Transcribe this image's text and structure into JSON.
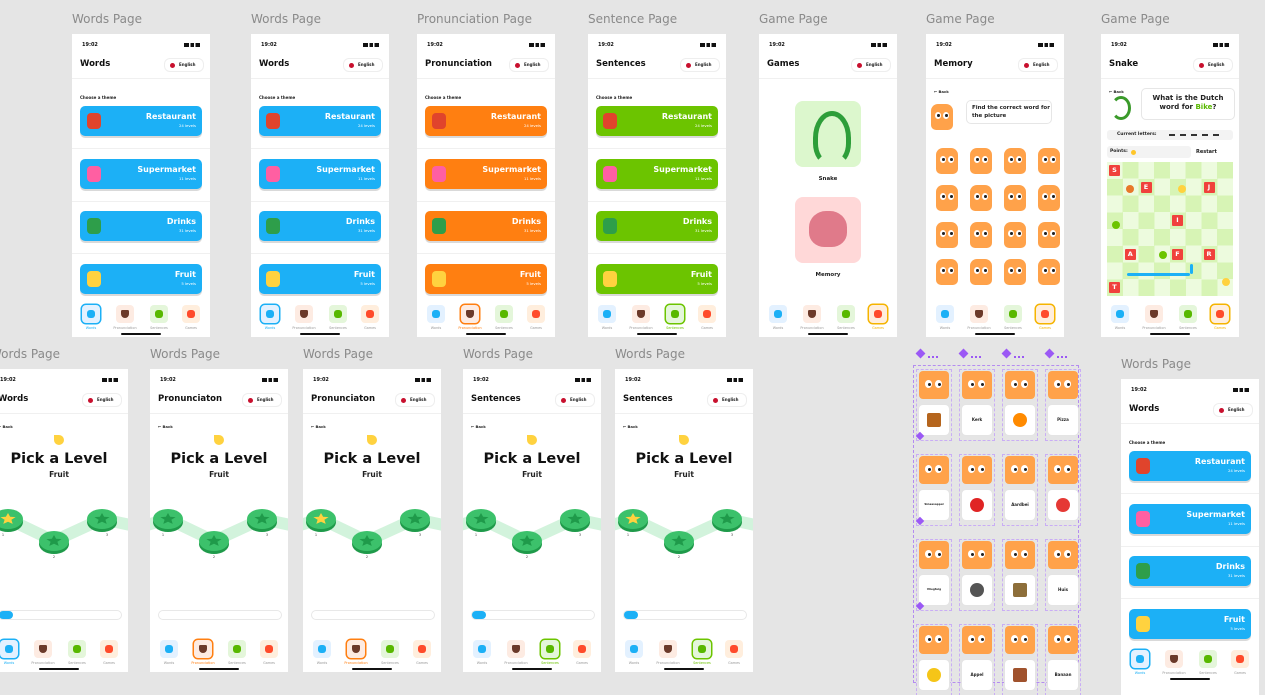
{
  "status_time": "19:02",
  "language": "English",
  "theme_prompt": "Choose a theme",
  "themes": [
    {
      "name": "Restaurant",
      "levels": "24 levels"
    },
    {
      "name": "Supermarket",
      "levels": "11 levels"
    },
    {
      "name": "Drinks",
      "levels": "31 levels"
    },
    {
      "name": "Fruit",
      "levels": "5 levels"
    }
  ],
  "nav": [
    "Words",
    "Pronunciation",
    "Sentences",
    "Games"
  ],
  "back": "← Back",
  "games": [
    "Snake",
    "Memory"
  ],
  "memory_prompt": "Find the correct word for the picture",
  "snake": {
    "question": [
      "What is the Dutch",
      "word for ",
      "Bike",
      "?"
    ],
    "current_letters": "Current letters:",
    "points": "Points:",
    "restart": "Restart",
    "letters": [
      "S",
      "E",
      "J",
      "I",
      "A",
      "F",
      "R",
      "T"
    ]
  },
  "level_picker": {
    "title": "Pick a Level",
    "theme": "Fruit",
    "levels": [
      1,
      2,
      3
    ]
  },
  "memory_cards": [
    null,
    "Kerk",
    null,
    "Pizza",
    "Sinaasappel",
    null,
    "Aardbei",
    null,
    "Vliegtuig",
    null,
    null,
    "Huis",
    null,
    "Appel",
    null,
    "Banaan"
  ],
  "frames": [
    {
      "label": "Words Page",
      "screen": "themes",
      "title": "Words",
      "accent": "#1cb0f6",
      "active_nav": 0
    },
    {
      "label": "Words Page",
      "screen": "themes",
      "title": "Words",
      "accent": "#1cb0f6",
      "active_nav": 0
    },
    {
      "label": "Pronunciation Page",
      "screen": "themes",
      "title": "Pronunciation",
      "accent": "#ff7f11",
      "active_nav": 1
    },
    {
      "label": "Sentence Page",
      "screen": "themes",
      "title": "Sentences",
      "accent": "#6cc400",
      "active_nav": 2
    },
    {
      "label": "Game Page",
      "screen": "games",
      "title": "Games",
      "accent": "#f5b400",
      "active_nav": 3
    },
    {
      "label": "Game Page",
      "screen": "memory",
      "title": "Memory",
      "accent": "#f5b400",
      "active_nav": 3
    },
    {
      "label": "Game Page",
      "screen": "snake",
      "title": "Snake",
      "accent": "#f5b400",
      "active_nav": 3
    },
    {
      "label": "Words Page",
      "screen": "levels",
      "title": "Words",
      "accent": "#1cb0f6",
      "active_nav": 0
    },
    {
      "label": "Words Page",
      "screen": "levels",
      "title": "Pronunciaton",
      "accent": "#ff7f11",
      "active_nav": 1
    },
    {
      "label": "Words Page",
      "screen": "levels",
      "title": "Pronunciaton",
      "accent": "#ff7f11",
      "active_nav": 1
    },
    {
      "label": "Words Page",
      "screen": "levels",
      "title": "Sentences",
      "accent": "#6cc400",
      "active_nav": 2
    },
    {
      "label": "Words Page",
      "screen": "levels",
      "title": "Sentences",
      "accent": "#6cc400",
      "active_nav": 2
    },
    {
      "label": "Words Page",
      "screen": "themes",
      "title": "Words",
      "accent": "#1cb0f6",
      "active_nav": 0
    }
  ]
}
